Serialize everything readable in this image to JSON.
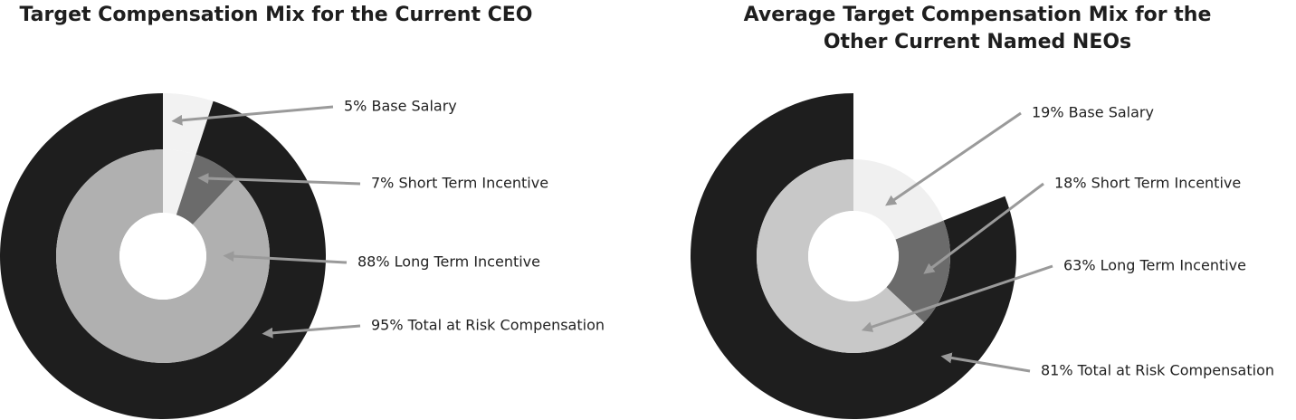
{
  "chart_data": [
    {
      "type": "donut",
      "title": "Target Compensation Mix for the Current CEO",
      "inner": {
        "values": [
          5,
          7,
          88
        ],
        "colors": [
          "#f2f2f2",
          "#6b6b6b",
          "#b0b0b0"
        ],
        "labels": [
          "5% Base Salary",
          "7% Short Term Incentive",
          "88% Long Term Incentive"
        ]
      },
      "outer": {
        "values": [
          5,
          95
        ],
        "colors": [
          "#f2f2f2",
          "#1e1e1e"
        ],
        "labels": [
          null,
          "95% Total at Risk Compensation"
        ]
      }
    },
    {
      "type": "donut",
      "title": "Average Target Compensation Mix for the Other Current Named NEOs",
      "inner": {
        "values": [
          19,
          18,
          63
        ],
        "colors": [
          "#f0f0f0",
          "#6b6b6b",
          "#c8c8c8"
        ],
        "labels": [
          "19% Base Salary",
          "18% Short Term Incentive",
          "63% Long Term Incentive"
        ]
      },
      "outer": {
        "values": [
          19,
          81
        ],
        "colors": [
          "#ffffff",
          "#1e1e1e"
        ],
        "labels": [
          null,
          "81% Total at Risk Compensation"
        ]
      }
    }
  ]
}
